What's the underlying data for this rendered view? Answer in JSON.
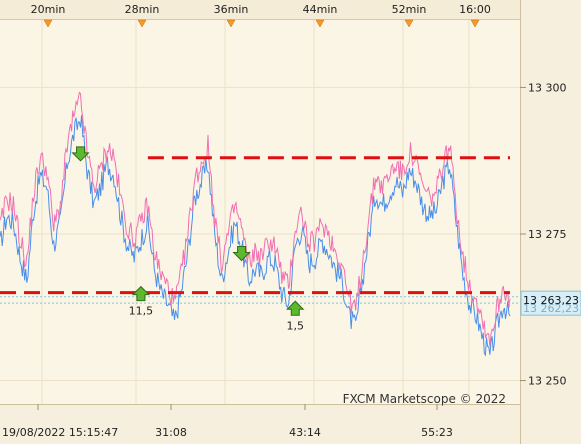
{
  "chart_data": {
    "type": "line",
    "title": "",
    "watermark": "FXCM Marketscope © 2022",
    "top_time_labels": [
      "20min",
      "28min",
      "36min",
      "44min",
      "52min",
      "16:00"
    ],
    "bottom_time_labels": [
      "19/08/2022 15:15:47",
      "31:08",
      "43:14",
      "55:23"
    ],
    "y_ticks": [
      13250,
      13275,
      13300
    ],
    "y_tick_labels": [
      "13 250",
      "13 275",
      "13 300"
    ],
    "ylim": [
      13246.0,
      13311.5
    ],
    "current_price_label": "13 263,23",
    "current_price_label_hidden": "13 262,23",
    "levels": [
      {
        "name": "resistance",
        "value": 13288.0,
        "x_start": 0.29,
        "x_end": 1.0,
        "color": "#e01010"
      },
      {
        "name": "support",
        "value": 13265.0,
        "x_start": 0.0,
        "x_end": 1.0,
        "color": "#e01010"
      }
    ],
    "series": [
      {
        "name": "ask",
        "color": "#f070b0"
      },
      {
        "name": "bid",
        "color": "#4a8fe8"
      }
    ],
    "ask_values": [
      13276,
      13281,
      13280,
      13274,
      13270,
      13282,
      13288,
      13286,
      13276,
      13280,
      13290,
      13295,
      13298,
      13289,
      13283,
      13286,
      13290,
      13288,
      13281,
      13276,
      13274,
      13277,
      13280,
      13272,
      13268,
      13266,
      13263,
      13268,
      13275,
      13284,
      13287,
      13290,
      13278,
      13270,
      13275,
      13280,
      13276,
      13270,
      13272,
      13271,
      13274,
      13273,
      13268,
      13266,
      13276,
      13279,
      13273,
      13274,
      13277,
      13275,
      13272,
      13270,
      13264,
      13262,
      13270,
      13278,
      13285,
      13283,
      13285,
      13287,
      13285,
      13289,
      13287,
      13283,
      13281,
      13282,
      13287,
      13290,
      13280,
      13271,
      13266,
      13264,
      13260,
      13257,
      13262,
      13266,
      13264
    ],
    "bid_values": [
      13273,
      13278,
      13277,
      13271,
      13267,
      13279,
      13285,
      13283,
      13273,
      13277,
      13287,
      13292,
      13295,
      13286,
      13280,
      13283,
      13287,
      13285,
      13278,
      13273,
      13271,
      13274,
      13277,
      13269,
      13265,
      13263,
      13260,
      13265,
      13272,
      13281,
      13284,
      13287,
      13275,
      13267,
      13272,
      13277,
      13273,
      13267,
      13269,
      13268,
      13271,
      13270,
      13265,
      13263,
      13273,
      13276,
      13270,
      13271,
      13274,
      13272,
      13269,
      13267,
      13261,
      13259,
      13267,
      13275,
      13282,
      13280,
      13282,
      13284,
      13282,
      13286,
      13284,
      13280,
      13278,
      13279,
      13284,
      13287,
      13277,
      13268,
      13263,
      13261,
      13257,
      13254,
      13259,
      13263,
      13261
    ],
    "signals": [
      {
        "name": "sell-signal",
        "direction": "down",
        "bar": 12,
        "price": 13288.5,
        "label": ""
      },
      {
        "name": "buy-signal",
        "direction": "up",
        "bar": 21,
        "price": 13265.0,
        "label": "11,5"
      },
      {
        "name": "sell-signal",
        "direction": "down",
        "bar": 36,
        "price": 13271.5,
        "label": ""
      },
      {
        "name": "buy-signal",
        "direction": "up",
        "bar": 44,
        "price": 13262.5,
        "label": "1,5"
      }
    ],
    "current_price_lines": [
      13264.3,
      13263.2
    ],
    "grid": true
  }
}
